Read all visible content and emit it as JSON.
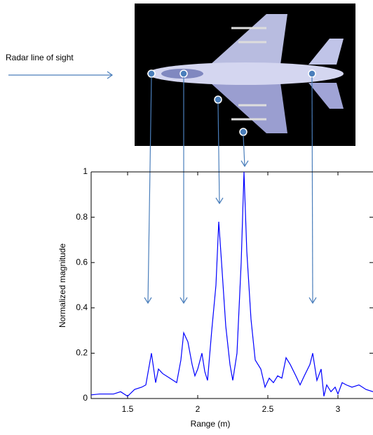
{
  "chart_data": {
    "type": "line",
    "annotation": "Radar line of sight",
    "xlabel": "Range (m)",
    "ylabel": "Normalized magnitude",
    "xlim": [
      1.24,
      3.25
    ],
    "ylim": [
      0,
      1
    ],
    "xticks": [
      1.5,
      2,
      2.5,
      3
    ],
    "yticks": [
      0,
      0.2,
      0.4,
      0.6,
      0.8,
      1
    ],
    "grid": false,
    "series": [
      {
        "color": "#0000ff",
        "x": [
          1.24,
          1.3,
          1.4,
          1.45,
          1.5,
          1.55,
          1.6,
          1.63,
          1.67,
          1.7,
          1.72,
          1.75,
          1.8,
          1.85,
          1.88,
          1.9,
          1.93,
          1.96,
          1.98,
          2.0,
          2.03,
          2.05,
          2.07,
          2.1,
          2.13,
          2.15,
          2.17,
          2.2,
          2.23,
          2.25,
          2.28,
          2.31,
          2.33,
          2.35,
          2.38,
          2.41,
          2.45,
          2.48,
          2.51,
          2.54,
          2.57,
          2.6,
          2.63,
          2.66,
          2.7,
          2.73,
          2.76,
          2.8,
          2.82,
          2.85,
          2.88,
          2.9,
          2.92,
          2.95,
          2.98,
          3.0,
          3.03,
          3.06,
          3.1,
          3.15,
          3.2,
          3.25
        ],
        "values": [
          0.016,
          0.02,
          0.02,
          0.03,
          0.01,
          0.04,
          0.05,
          0.06,
          0.2,
          0.07,
          0.13,
          0.11,
          0.09,
          0.07,
          0.17,
          0.29,
          0.25,
          0.15,
          0.1,
          0.13,
          0.2,
          0.12,
          0.08,
          0.3,
          0.5,
          0.78,
          0.6,
          0.32,
          0.15,
          0.08,
          0.2,
          0.6,
          1.0,
          0.65,
          0.35,
          0.17,
          0.13,
          0.05,
          0.09,
          0.07,
          0.1,
          0.09,
          0.18,
          0.15,
          0.1,
          0.06,
          0.1,
          0.15,
          0.2,
          0.08,
          0.13,
          0.01,
          0.06,
          0.03,
          0.05,
          0.02,
          0.07,
          0.06,
          0.05,
          0.06,
          0.04,
          0.03
        ]
      }
    ]
  }
}
